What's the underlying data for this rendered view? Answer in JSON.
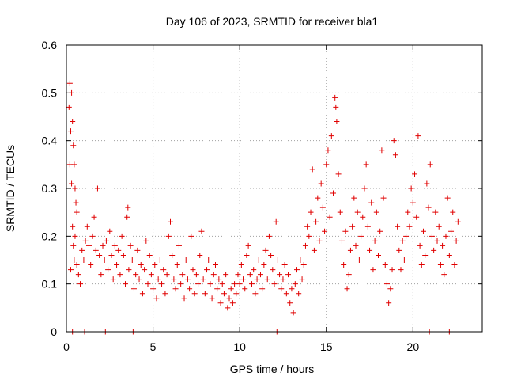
{
  "chart_data": {
    "type": "scatter",
    "title": "Day 106 of 2023, SRMTID for receiver bla1",
    "xlabel": "GPS time / hours",
    "ylabel": "SRMTID / TECUs",
    "xlim": [
      0,
      24
    ],
    "ylim": [
      0,
      0.6
    ],
    "x_ticks": [
      "0",
      "5",
      "10",
      "15",
      "20"
    ],
    "y_ticks": [
      "0",
      "0.1",
      "0.2",
      "0.3",
      "0.4",
      "0.5",
      "0.6"
    ],
    "x_tick_values": [
      0,
      5,
      10,
      15,
      20
    ],
    "y_tick_values": [
      0,
      0.1,
      0.2,
      0.3,
      0.4,
      0.5,
      0.6
    ],
    "grid": true,
    "marker": "plus",
    "marker_color": "#e00000",
    "series": [
      {
        "name": "SRMTID",
        "points": [
          [
            0.15,
            0.47
          ],
          [
            0.2,
            0.52
          ],
          [
            0.25,
            0.42
          ],
          [
            0.3,
            0.5
          ],
          [
            0.35,
            0.44
          ],
          [
            0.4,
            0.39
          ],
          [
            0.45,
            0.35
          ],
          [
            0.5,
            0.3
          ],
          [
            0.55,
            0.27
          ],
          [
            0.6,
            0.25
          ],
          [
            0.2,
            0.35
          ],
          [
            0.3,
            0.31
          ],
          [
            0.35,
            0.22
          ],
          [
            0.4,
            0.18
          ],
          [
            0.45,
            0.15
          ],
          [
            0.5,
            0.2
          ],
          [
            0.6,
            0.14
          ],
          [
            0.7,
            0.12
          ],
          [
            0.8,
            0.1
          ],
          [
            0.25,
            0.13
          ],
          [
            0.9,
            0.17
          ],
          [
            1.0,
            0.15
          ],
          [
            1.1,
            0.19
          ],
          [
            1.2,
            0.22
          ],
          [
            1.3,
            0.18
          ],
          [
            1.4,
            0.14
          ],
          [
            1.5,
            0.2
          ],
          [
            1.6,
            0.24
          ],
          [
            1.7,
            0.17
          ],
          [
            1.8,
            0.3
          ],
          [
            1.9,
            0.16
          ],
          [
            2.0,
            0.12
          ],
          [
            2.1,
            0.18
          ],
          [
            2.2,
            0.15
          ],
          [
            2.3,
            0.19
          ],
          [
            2.4,
            0.13
          ],
          [
            2.5,
            0.21
          ],
          [
            2.6,
            0.16
          ],
          [
            2.7,
            0.11
          ],
          [
            2.8,
            0.18
          ],
          [
            2.9,
            0.14
          ],
          [
            3.0,
            0.17
          ],
          [
            3.1,
            0.12
          ],
          [
            3.2,
            0.2
          ],
          [
            3.3,
            0.16
          ],
          [
            3.4,
            0.1
          ],
          [
            3.5,
            0.24
          ],
          [
            3.55,
            0.26
          ],
          [
            3.6,
            0.13
          ],
          [
            3.7,
            0.18
          ],
          [
            3.8,
            0.15
          ],
          [
            3.9,
            0.09
          ],
          [
            4.0,
            0.12
          ],
          [
            4.1,
            0.17
          ],
          [
            4.2,
            0.11
          ],
          [
            4.3,
            0.14
          ],
          [
            4.4,
            0.08
          ],
          [
            4.5,
            0.13
          ],
          [
            4.6,
            0.19
          ],
          [
            4.7,
            0.1
          ],
          [
            4.8,
            0.16
          ],
          [
            4.9,
            0.12
          ],
          [
            5.0,
            0.09
          ],
          [
            5.1,
            0.14
          ],
          [
            5.2,
            0.07
          ],
          [
            5.3,
            0.11
          ],
          [
            5.4,
            0.15
          ],
          [
            5.5,
            0.1
          ],
          [
            5.6,
            0.13
          ],
          [
            5.7,
            0.08
          ],
          [
            5.8,
            0.12
          ],
          [
            5.9,
            0.2
          ],
          [
            6.0,
            0.23
          ],
          [
            6.1,
            0.16
          ],
          [
            6.2,
            0.11
          ],
          [
            6.3,
            0.09
          ],
          [
            6.4,
            0.14
          ],
          [
            6.5,
            0.18
          ],
          [
            6.6,
            0.1
          ],
          [
            6.7,
            0.12
          ],
          [
            6.8,
            0.07
          ],
          [
            6.9,
            0.15
          ],
          [
            7.0,
            0.11
          ],
          [
            7.1,
            0.09
          ],
          [
            7.2,
            0.2
          ],
          [
            7.3,
            0.13
          ],
          [
            7.4,
            0.08
          ],
          [
            7.5,
            0.12
          ],
          [
            7.6,
            0.1
          ],
          [
            7.7,
            0.16
          ],
          [
            7.8,
            0.21
          ],
          [
            7.9,
            0.11
          ],
          [
            8.0,
            0.08
          ],
          [
            8.1,
            0.13
          ],
          [
            8.2,
            0.15
          ],
          [
            8.3,
            0.1
          ],
          [
            8.4,
            0.07
          ],
          [
            8.5,
            0.12
          ],
          [
            8.6,
            0.14
          ],
          [
            8.7,
            0.09
          ],
          [
            8.8,
            0.11
          ],
          [
            8.9,
            0.06
          ],
          [
            9.0,
            0.1
          ],
          [
            9.1,
            0.08
          ],
          [
            9.2,
            0.12
          ],
          [
            9.3,
            0.05
          ],
          [
            9.4,
            0.07
          ],
          [
            9.5,
            0.09
          ],
          [
            9.6,
            0.06
          ],
          [
            9.7,
            0.1
          ],
          [
            9.8,
            0.08
          ],
          [
            9.9,
            0.12
          ],
          [
            10.0,
            0.1
          ],
          [
            10.1,
            0.14
          ],
          [
            10.2,
            0.11
          ],
          [
            10.3,
            0.09
          ],
          [
            10.4,
            0.16
          ],
          [
            10.5,
            0.18
          ],
          [
            10.6,
            0.12
          ],
          [
            10.7,
            0.1
          ],
          [
            10.8,
            0.13
          ],
          [
            10.9,
            0.08
          ],
          [
            11.0,
            0.11
          ],
          [
            11.1,
            0.15
          ],
          [
            11.2,
            0.12
          ],
          [
            11.3,
            0.09
          ],
          [
            11.4,
            0.14
          ],
          [
            11.5,
            0.17
          ],
          [
            11.6,
            0.11
          ],
          [
            11.7,
            0.2
          ],
          [
            11.8,
            0.16
          ],
          [
            11.9,
            0.13
          ],
          [
            12.0,
            0.1
          ],
          [
            12.1,
            0.23
          ],
          [
            12.2,
            0.15
          ],
          [
            12.3,
            0.12
          ],
          [
            12.4,
            0.09
          ],
          [
            12.5,
            0.11
          ],
          [
            12.6,
            0.14
          ],
          [
            12.7,
            0.08
          ],
          [
            12.8,
            0.12
          ],
          [
            12.9,
            0.06
          ],
          [
            13.0,
            0.09
          ],
          [
            13.1,
            0.04
          ],
          [
            13.2,
            0.1
          ],
          [
            13.3,
            0.13
          ],
          [
            13.4,
            0.08
          ],
          [
            13.5,
            0.15
          ],
          [
            13.6,
            0.11
          ],
          [
            13.7,
            0.14
          ],
          [
            13.8,
            0.18
          ],
          [
            13.9,
            0.22
          ],
          [
            14.0,
            0.2
          ],
          [
            14.1,
            0.25
          ],
          [
            14.2,
            0.34
          ],
          [
            14.3,
            0.17
          ],
          [
            14.4,
            0.23
          ],
          [
            14.5,
            0.28
          ],
          [
            14.6,
            0.19
          ],
          [
            14.7,
            0.31
          ],
          [
            14.8,
            0.26
          ],
          [
            14.9,
            0.21
          ],
          [
            15.0,
            0.35
          ],
          [
            15.1,
            0.38
          ],
          [
            15.2,
            0.24
          ],
          [
            15.3,
            0.41
          ],
          [
            15.4,
            0.29
          ],
          [
            15.5,
            0.49
          ],
          [
            15.55,
            0.47
          ],
          [
            15.6,
            0.44
          ],
          [
            15.7,
            0.33
          ],
          [
            15.8,
            0.25
          ],
          [
            15.9,
            0.19
          ],
          [
            16.0,
            0.14
          ],
          [
            16.1,
            0.21
          ],
          [
            16.2,
            0.09
          ],
          [
            16.3,
            0.12
          ],
          [
            16.4,
            0.17
          ],
          [
            16.5,
            0.22
          ],
          [
            16.6,
            0.28
          ],
          [
            16.7,
            0.18
          ],
          [
            16.8,
            0.25
          ],
          [
            16.9,
            0.15
          ],
          [
            17.0,
            0.2
          ],
          [
            17.1,
            0.24
          ],
          [
            17.2,
            0.3
          ],
          [
            17.3,
            0.35
          ],
          [
            17.4,
            0.22
          ],
          [
            17.5,
            0.17
          ],
          [
            17.6,
            0.27
          ],
          [
            17.7,
            0.13
          ],
          [
            17.8,
            0.19
          ],
          [
            17.9,
            0.25
          ],
          [
            18.0,
            0.16
          ],
          [
            18.1,
            0.21
          ],
          [
            18.2,
            0.38
          ],
          [
            18.3,
            0.28
          ],
          [
            18.4,
            0.14
          ],
          [
            18.5,
            0.1
          ],
          [
            18.6,
            0.06
          ],
          [
            18.7,
            0.09
          ],
          [
            18.8,
            0.13
          ],
          [
            18.9,
            0.4
          ],
          [
            19.0,
            0.37
          ],
          [
            19.1,
            0.22
          ],
          [
            19.2,
            0.17
          ],
          [
            19.3,
            0.13
          ],
          [
            19.4,
            0.19
          ],
          [
            19.5,
            0.15
          ],
          [
            19.6,
            0.2
          ],
          [
            19.7,
            0.25
          ],
          [
            19.8,
            0.22
          ],
          [
            19.9,
            0.3
          ],
          [
            20.0,
            0.27
          ],
          [
            20.1,
            0.33
          ],
          [
            20.2,
            0.24
          ],
          [
            20.3,
            0.41
          ],
          [
            20.4,
            0.18
          ],
          [
            20.5,
            0.14
          ],
          [
            20.6,
            0.21
          ],
          [
            20.7,
            0.16
          ],
          [
            20.8,
            0.31
          ],
          [
            20.9,
            0.26
          ],
          [
            21.0,
            0.35
          ],
          [
            21.1,
            0.2
          ],
          [
            21.2,
            0.17
          ],
          [
            21.3,
            0.25
          ],
          [
            21.4,
            0.19
          ],
          [
            21.5,
            0.22
          ],
          [
            21.6,
            0.14
          ],
          [
            21.7,
            0.18
          ],
          [
            21.8,
            0.12
          ],
          [
            21.9,
            0.2
          ],
          [
            22.0,
            0.28
          ],
          [
            22.1,
            0.16
          ],
          [
            22.2,
            0.21
          ],
          [
            22.3,
            0.25
          ],
          [
            22.4,
            0.14
          ],
          [
            22.5,
            0.19
          ],
          [
            22.6,
            0.23
          ],
          [
            0.35,
            0.0
          ],
          [
            1.05,
            0.0
          ],
          [
            2.25,
            0.0
          ],
          [
            3.85,
            0.0
          ],
          [
            12.15,
            0.0
          ],
          [
            20.95,
            0.0
          ],
          [
            22.1,
            0.0
          ]
        ]
      }
    ]
  }
}
